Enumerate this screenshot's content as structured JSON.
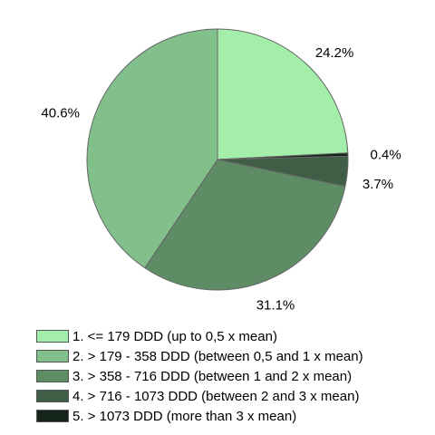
{
  "chart_data": {
    "type": "pie",
    "slices": [
      {
        "label": "1. <= 179 DDD (up to 0,5 x mean)",
        "value": 24.2,
        "value_label": "24.2%",
        "color": "#a3eea9"
      },
      {
        "label": "5. > 1073 DDD (more than 3 x mean)",
        "value": 0.4,
        "value_label": "0.4%",
        "color": "#14241a"
      },
      {
        "label": "4. > 716 - 1073 DDD (between 2 and 3 x mean)",
        "value": 3.7,
        "value_label": "3.7%",
        "color": "#3f5e45"
      },
      {
        "label": "3. > 358 - 716 DDD (between 1 and 2 x mean)",
        "value": 31.1,
        "value_label": "31.1%",
        "color": "#5e8c65"
      },
      {
        "label": "2. > 179 - 358 DDD (between 0,5 and 1 x mean)",
        "value": 40.6,
        "value_label": "40.6%",
        "color": "#82c08b"
      }
    ],
    "legend": {
      "placement": "bottom",
      "items": [
        {
          "label": "1. <= 179 DDD (up to 0,5 x mean)",
          "color": "#a3eea9"
        },
        {
          "label": "2. > 179 - 358 DDD (between 0,5 and 1 x mean)",
          "color": "#82c08b"
        },
        {
          "label": "3. > 358 - 716 DDD (between 1 and 2 x mean)",
          "color": "#5e8c65"
        },
        {
          "label": "4. > 716 - 1073 DDD (between 2 and 3 x mean)",
          "color": "#3f5e45"
        },
        {
          "label": "5. > 1073 DDD (more than 3 x mean)",
          "color": "#14241a"
        }
      ]
    }
  }
}
